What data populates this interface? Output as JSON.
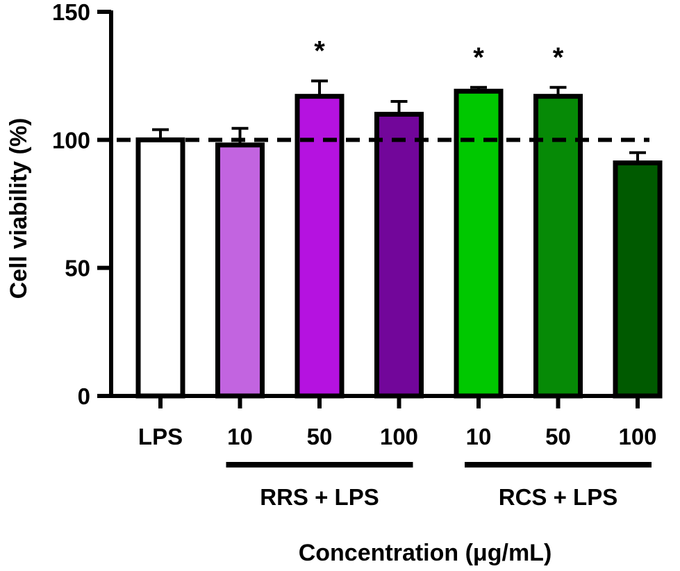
{
  "chart_data": {
    "type": "bar",
    "title": "",
    "ylabel": "Cell viability (%)",
    "xlabel": "Concentration (μg/mL)",
    "ylim": [
      0,
      150
    ],
    "yticks": [
      0,
      50,
      100,
      150
    ],
    "reference_line": 100,
    "categories": [
      "LPS",
      "10",
      "50",
      "100",
      "10",
      "50",
      "100"
    ],
    "values": [
      100,
      98,
      117,
      110,
      119,
      117,
      91
    ],
    "errors": [
      4,
      6.5,
      6,
      5,
      1.5,
      3.5,
      4
    ],
    "significance": [
      "",
      "",
      "*",
      "",
      "*",
      "*",
      ""
    ],
    "colors": [
      "#ffffff",
      "#c264e0",
      "#b512e0",
      "#72069a",
      "#00c800",
      "#068a06",
      "#005a00"
    ],
    "groups": [
      {
        "label": "RRS + LPS",
        "start": 1,
        "end": 3
      },
      {
        "label": "RCS + LPS",
        "start": 4,
        "end": 6
      }
    ]
  }
}
